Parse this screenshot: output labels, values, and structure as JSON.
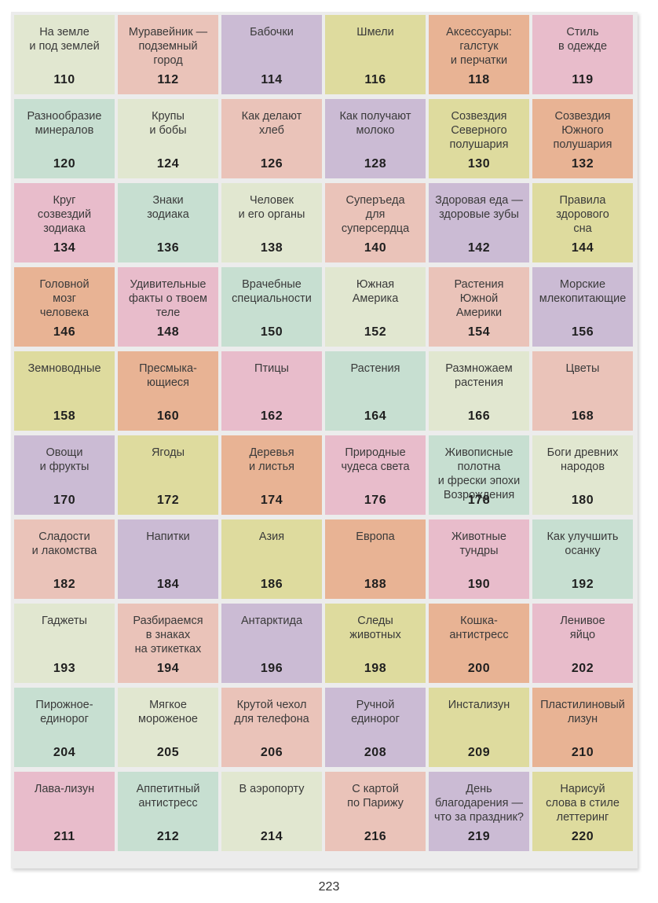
{
  "palette": {
    "g": "#e1e7d0",
    "r": "#eac3b9",
    "p": "#cbbbd4",
    "y": "#dedb9e",
    "o": "#e8b394",
    "k": "#e8bccb",
    "m": "#c7dfd1"
  },
  "items": [
    {
      "title": "На земле\nи под землей",
      "page": "110",
      "color": "g"
    },
    {
      "title": "Муравейник —\nподземный\nгород",
      "page": "112",
      "color": "r"
    },
    {
      "title": "Бабочки",
      "page": "114",
      "color": "p"
    },
    {
      "title": "Шмели",
      "page": "116",
      "color": "y"
    },
    {
      "title": "Аксессуары:\nгалстук\nи перчатки",
      "page": "118",
      "color": "o"
    },
    {
      "title": "Стиль\nв одежде",
      "page": "119",
      "color": "k"
    },
    {
      "title": "Разнообразие\nминералов",
      "page": "120",
      "color": "m"
    },
    {
      "title": "Крупы\nи бобы",
      "page": "124",
      "color": "g"
    },
    {
      "title": "Как делают\nхлеб",
      "page": "126",
      "color": "r"
    },
    {
      "title": "Как получают\nмолоко",
      "page": "128",
      "color": "p"
    },
    {
      "title": "Созвездия\nСеверного\nполушария",
      "page": "130",
      "color": "y"
    },
    {
      "title": "Созвездия\nЮжного\nполушария",
      "page": "132",
      "color": "o"
    },
    {
      "title": "Круг\nсозвездий\nзодиака",
      "page": "134",
      "color": "k"
    },
    {
      "title": "Знаки\nзодиака",
      "page": "136",
      "color": "m"
    },
    {
      "title": "Человек\nи его органы",
      "page": "138",
      "color": "g"
    },
    {
      "title": "Суперъеда\nдля\nсуперсердца",
      "page": "140",
      "color": "r"
    },
    {
      "title": "Здоровая еда —\nздоровые зубы",
      "page": "142",
      "color": "p"
    },
    {
      "title": "Правила\nздорового\nсна",
      "page": "144",
      "color": "y"
    },
    {
      "title": "Головной\nмозг\nчеловека",
      "page": "146",
      "color": "o"
    },
    {
      "title": "Удивительные\nфакты о твоем\nтеле",
      "page": "148",
      "color": "k"
    },
    {
      "title": "Врачебные\nспециальности",
      "page": "150",
      "color": "m"
    },
    {
      "title": "Южная\nАмерика",
      "page": "152",
      "color": "g"
    },
    {
      "title": "Растения\nЮжной\nАмерики",
      "page": "154",
      "color": "r"
    },
    {
      "title": "Морские\nмлекопитающие",
      "page": "156",
      "color": "p"
    },
    {
      "title": "Земноводные",
      "page": "158",
      "color": "y"
    },
    {
      "title": "Пресмыка-\nющиеся",
      "page": "160",
      "color": "o"
    },
    {
      "title": "Птицы",
      "page": "162",
      "color": "k"
    },
    {
      "title": "Растения",
      "page": "164",
      "color": "m"
    },
    {
      "title": "Размножаем\nрастения",
      "page": "166",
      "color": "g"
    },
    {
      "title": "Цветы",
      "page": "168",
      "color": "r"
    },
    {
      "title": "Овощи\nи фрукты",
      "page": "170",
      "color": "p"
    },
    {
      "title": "Ягоды",
      "page": "172",
      "color": "y"
    },
    {
      "title": "Деревья\nи листья",
      "page": "174",
      "color": "o"
    },
    {
      "title": "Природные\nчудеса света",
      "page": "176",
      "color": "k"
    },
    {
      "title": "Живописные\nполотна\nи фрески эпохи\nВозрождения",
      "page": "178",
      "color": "m"
    },
    {
      "title": "Боги древних\nнародов",
      "page": "180",
      "color": "g"
    },
    {
      "title": "Сладости\nи лакомства",
      "page": "182",
      "color": "r"
    },
    {
      "title": "Напитки",
      "page": "184",
      "color": "p"
    },
    {
      "title": "Азия",
      "page": "186",
      "color": "y"
    },
    {
      "title": "Европа",
      "page": "188",
      "color": "o"
    },
    {
      "title": "Животные\nтундры",
      "page": "190",
      "color": "k"
    },
    {
      "title": "Как улучшить\nосанку",
      "page": "192",
      "color": "m"
    },
    {
      "title": "Гаджеты",
      "page": "193",
      "color": "g"
    },
    {
      "title": "Разбираемся\nв знаках\nна этикетках",
      "page": "194",
      "color": "r"
    },
    {
      "title": "Антарктида",
      "page": "196",
      "color": "p"
    },
    {
      "title": "Следы\nживотных",
      "page": "198",
      "color": "y"
    },
    {
      "title": "Кошка-\nантистресс",
      "page": "200",
      "color": "o"
    },
    {
      "title": "Ленивое\nяйцо",
      "page": "202",
      "color": "k"
    },
    {
      "title": "Пирожное-\nединорог",
      "page": "204",
      "color": "m"
    },
    {
      "title": "Мягкое\nмороженое",
      "page": "205",
      "color": "g"
    },
    {
      "title": "Крутой чехол\nдля телефона",
      "page": "206",
      "color": "r"
    },
    {
      "title": "Ручной\nединорог",
      "page": "208",
      "color": "p"
    },
    {
      "title": "Инстализун",
      "page": "209",
      "color": "y"
    },
    {
      "title": "Пластилиновый\nлизун",
      "page": "210",
      "color": "o"
    },
    {
      "title": "Лава-лизун",
      "page": "211",
      "color": "k"
    },
    {
      "title": "Аппетитный\nантистресс",
      "page": "212",
      "color": "m"
    },
    {
      "title": "В аэропорту",
      "page": "214",
      "color": "g"
    },
    {
      "title": "С картой\nпо Парижу",
      "page": "216",
      "color": "r"
    },
    {
      "title": "День\nблагодарения —\nчто за праздник?",
      "page": "219",
      "color": "p"
    },
    {
      "title": "Нарисуй\nслова в стиле\nлеттеринг",
      "page": "220",
      "color": "y"
    }
  ],
  "footer": {
    "page_number": "223"
  }
}
